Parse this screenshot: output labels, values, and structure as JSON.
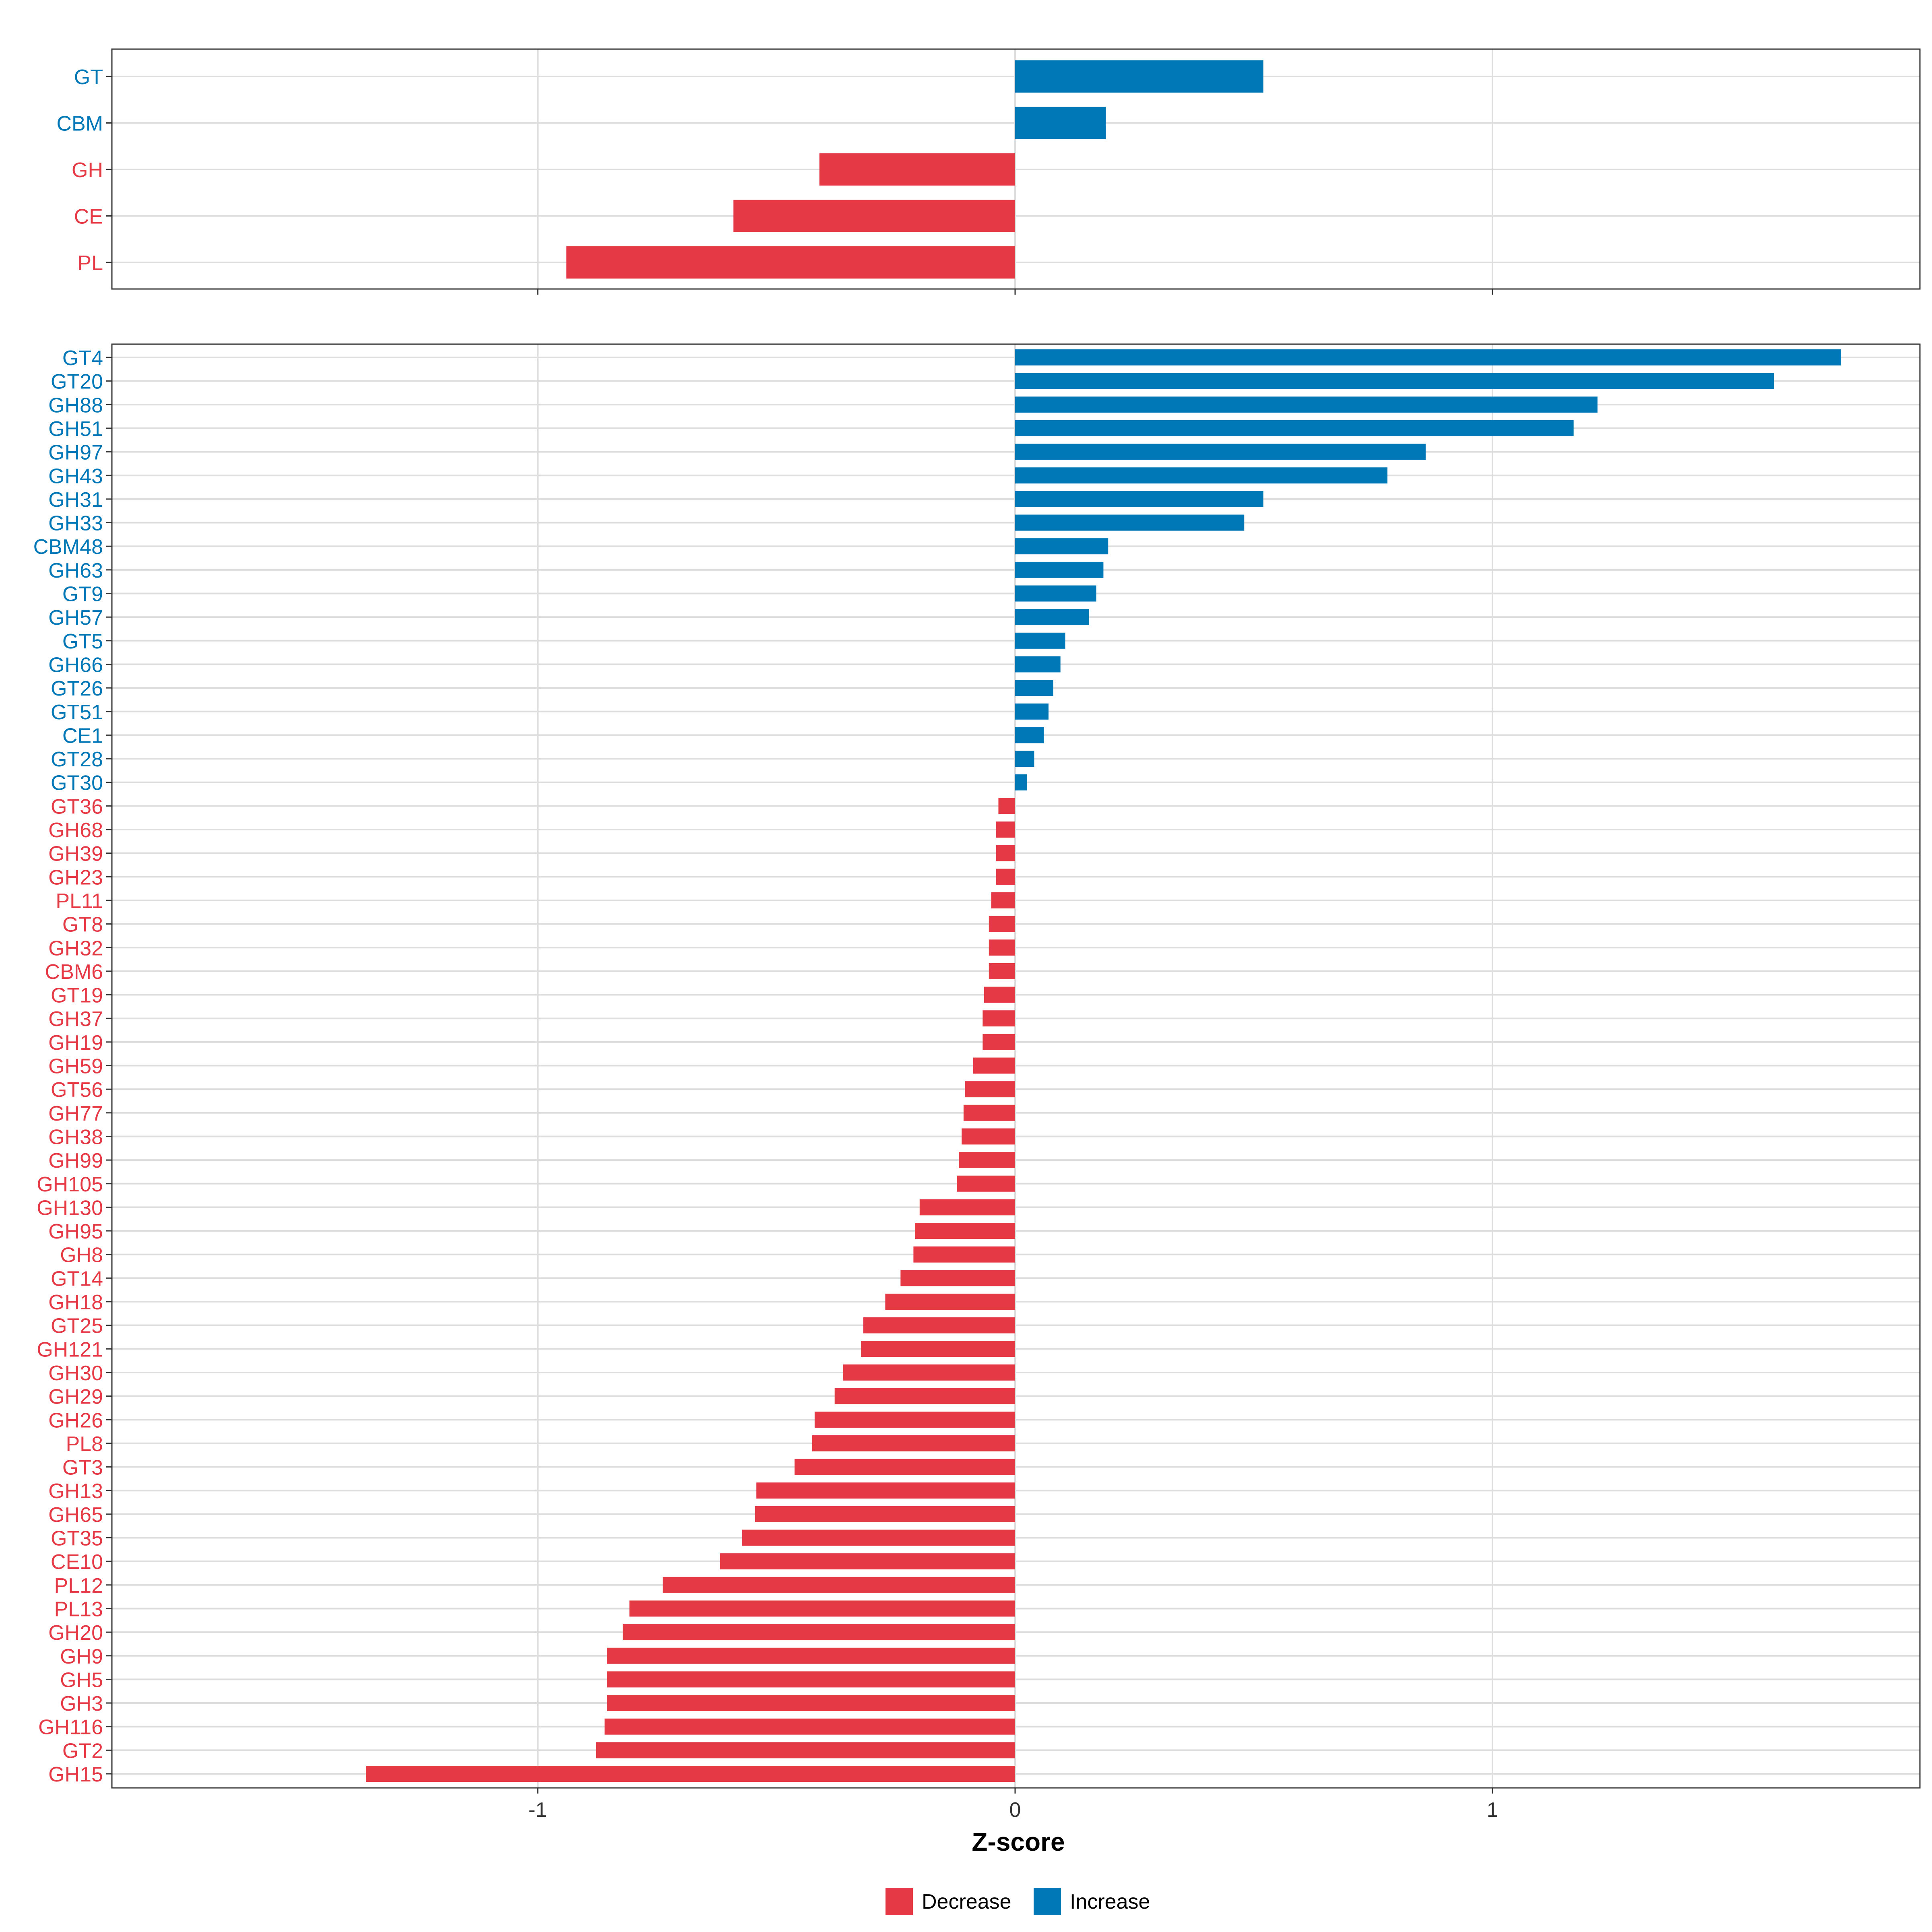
{
  "chart_data": {
    "type": "bar",
    "orientation": "horizontal",
    "xlabel": "Z-score",
    "xlim": [
      -1.9,
      1.9
    ],
    "x_ticks": [
      -1,
      0,
      1
    ],
    "x_tick_labels": [
      "-1",
      "0",
      "1"
    ],
    "grid": true,
    "legend_position": "bottom",
    "colors": {
      "Decrease": "#E63946",
      "Increase": "#0077B6"
    },
    "legend": [
      {
        "name": "Decrease",
        "color": "#E63946"
      },
      {
        "name": "Increase",
        "color": "#0077B6"
      }
    ],
    "panels": [
      {
        "name": "families",
        "categories": [
          "GT",
          "CBM",
          "GH",
          "CE",
          "PL"
        ],
        "values": [
          0.52,
          0.19,
          -0.41,
          -0.59,
          -0.94
        ]
      },
      {
        "name": "subfamilies",
        "categories": [
          "GT4",
          "GT20",
          "GH88",
          "GH51",
          "GH97",
          "GH43",
          "GH31",
          "GH33",
          "CBM48",
          "GH63",
          "GT9",
          "GH57",
          "GT5",
          "GH66",
          "GT26",
          "GT51",
          "CE1",
          "GT28",
          "GT30",
          "GT36",
          "GH68",
          "GH39",
          "GH23",
          "PL11",
          "GT8",
          "GH32",
          "CBM6",
          "GT19",
          "GH37",
          "GH19",
          "GH59",
          "GT56",
          "GH77",
          "GH38",
          "GH99",
          "GH105",
          "GH130",
          "GH95",
          "GH8",
          "GT14",
          "GH18",
          "GT25",
          "GH121",
          "GH30",
          "GH29",
          "GH26",
          "PL8",
          "GT3",
          "GH13",
          "GH65",
          "GT35",
          "CE10",
          "PL12",
          "PL13",
          "GH20",
          "GH9",
          "GH5",
          "GH3",
          "GH116",
          "GT2",
          "GH15"
        ],
        "values": [
          1.73,
          1.59,
          1.22,
          1.17,
          0.86,
          0.78,
          0.52,
          0.48,
          0.195,
          0.185,
          0.17,
          0.155,
          0.105,
          0.095,
          0.08,
          0.07,
          0.06,
          0.04,
          0.025,
          -0.035,
          -0.04,
          -0.04,
          -0.04,
          -0.05,
          -0.055,
          -0.055,
          -0.055,
          -0.065,
          -0.068,
          -0.068,
          -0.088,
          -0.105,
          -0.108,
          -0.112,
          -0.118,
          -0.122,
          -0.2,
          -0.21,
          -0.213,
          -0.24,
          -0.272,
          -0.318,
          -0.323,
          -0.36,
          -0.378,
          -0.42,
          -0.425,
          -0.462,
          -0.542,
          -0.545,
          -0.572,
          -0.618,
          -0.738,
          -0.808,
          -0.822,
          -0.855,
          -0.855,
          -0.855,
          -0.86,
          -0.878,
          -1.36
        ]
      }
    ]
  }
}
